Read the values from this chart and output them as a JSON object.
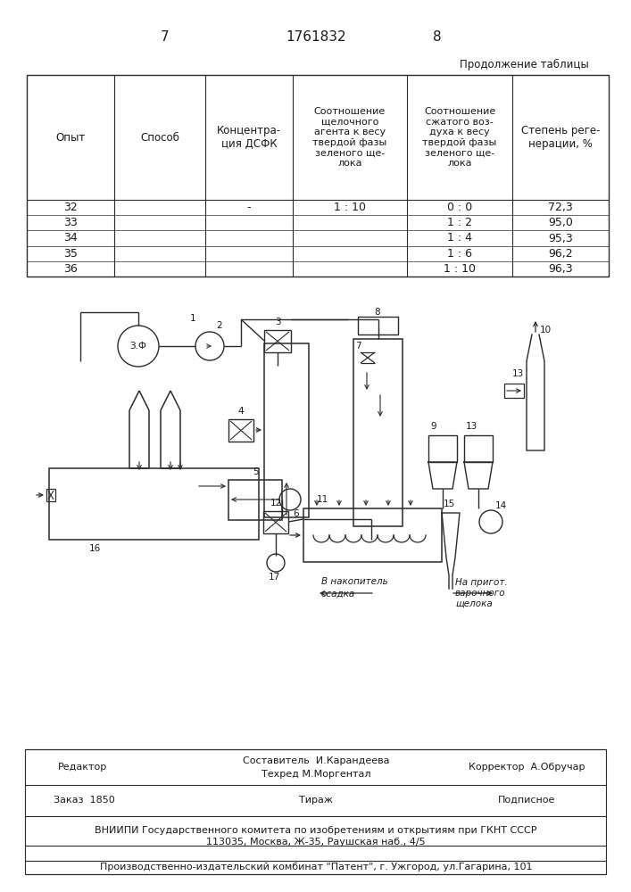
{
  "page_number_left": "7",
  "page_number_center": "1761832",
  "page_number_right": "8",
  "continuation_text": "Продолжение таблицы",
  "table_headers": [
    "Опыт",
    "Способ",
    "Концентра-\nция ДСФК",
    "Соотношение\nщелочного\nагента к весу\nтвердой фазы\nзеленого ще-\nлока",
    "Соотношение\nсжатого воз-\nдуха к весу\nтвердой фазы\nзеленого ще-\nлока",
    "Степень реге-\nнерации, %"
  ],
  "table_data": [
    [
      "32",
      "",
      "-",
      "1 : 10",
      "0 : 0",
      "72,3"
    ],
    [
      "33",
      "",
      "",
      "",
      "1 : 2",
      "95,0"
    ],
    [
      "34",
      "",
      "",
      "",
      "1 : 4",
      "95,3"
    ],
    [
      "35",
      "",
      "",
      "",
      "1 : 6",
      "96,2"
    ],
    [
      "36",
      "",
      "",
      "",
      "1 : 10",
      "96,3"
    ]
  ],
  "footer_editor": "Редактор",
  "footer_composer": "Составитель  И.Карандеева",
  "footer_corrector": "Корректор  А.Обручар",
  "footer_techred": "Техред М.Моргентал",
  "footer_order": "Заказ  1850",
  "footer_tirazh": "Тираж",
  "footer_podpisnoe": "Подписное",
  "footer_vniipи": "ВНИИПИ Государственного комитета по изобретениям и открытиям при ГКНТ СССР",
  "footer_address": "113035, Москва, Ж-35, Раушская наб., 4/5",
  "footer_production": "Производственно-издательский комбинат \"Патент\", г. Ужгород, ул.Гагарина, 101",
  "bg_color": "#ffffff",
  "text_color": "#1a1a1a",
  "line_color": "#2a2a2a"
}
